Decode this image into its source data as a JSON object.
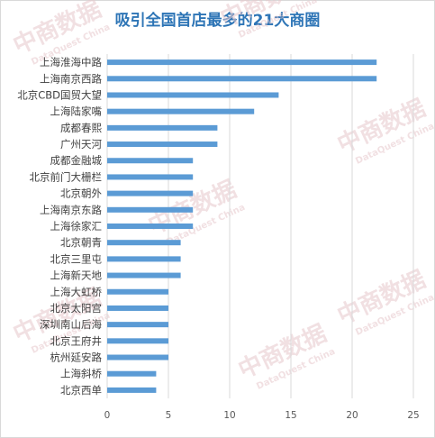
{
  "chart_data": {
    "type": "bar",
    "orientation": "horizontal",
    "title": "吸引全国首店最多的21大商圈",
    "categories": [
      "上海淮海中路",
      "上海南京西路",
      "北京CBD国贸大望",
      "上海陆家嘴",
      "成都春熙",
      "广州天河",
      "成都金融城",
      "北京前门大栅栏",
      "北京朝外",
      "上海南京东路",
      "上海徐家汇",
      "北京朝青",
      "北京三里屯",
      "上海新天地",
      "上海大虹桥",
      "北京太阳宫",
      "深圳南山后海",
      "北京王府井",
      "杭州延安路",
      "上海斜桥",
      "北京西单"
    ],
    "values": [
      22,
      22,
      14,
      12,
      9,
      9,
      7,
      7,
      7,
      7,
      7,
      6,
      6,
      6,
      5,
      5,
      5,
      5,
      5,
      4,
      4
    ],
    "xlim": [
      0,
      25
    ],
    "xticks": [
      "0",
      "5",
      "10",
      "15",
      "20",
      "25"
    ],
    "grid": "vertical",
    "bar_color": "#5b9bd5",
    "legend": "none"
  },
  "watermark": {
    "brand": "中商数据",
    "subtitle": "DataQuest China"
  }
}
